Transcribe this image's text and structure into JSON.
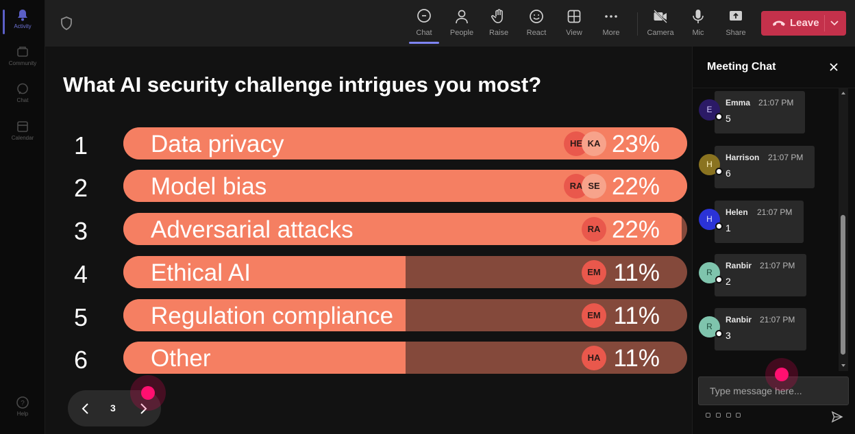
{
  "rail": [
    {
      "label": "Activity",
      "icon": "bell-icon",
      "active": true
    },
    {
      "label": "Community",
      "icon": "community-icon"
    },
    {
      "label": "Chat",
      "icon": "chat-icon"
    },
    {
      "label": "Calendar",
      "icon": "calendar-icon"
    },
    {
      "label": "Help",
      "icon": "help-icon"
    }
  ],
  "toolbar": {
    "chat": "Chat",
    "people": "People",
    "raise": "Raise",
    "react": "React",
    "view": "View",
    "more": "More",
    "camera": "Camera",
    "mic": "Mic",
    "share": "Share",
    "leave": "Leave"
  },
  "poll": {
    "question": "What AI security challenge intrigues you most?",
    "options": [
      {
        "rank": "1",
        "label": "Data privacy",
        "percent": "23%",
        "fill": 1.0,
        "voters": [
          "HE",
          "KA"
        ]
      },
      {
        "rank": "2",
        "label": "Model bias",
        "percent": "22%",
        "fill": 1.0,
        "voters": [
          "RA",
          "SE"
        ]
      },
      {
        "rank": "3",
        "label": "Adversarial attacks",
        "percent": "22%",
        "fill": 0.99,
        "voters": [
          "RA"
        ]
      },
      {
        "rank": "4",
        "label": "Ethical AI",
        "percent": "11%",
        "fill": 0.5,
        "voters": [
          "EM"
        ]
      },
      {
        "rank": "5",
        "label": "Regulation compliance",
        "percent": "11%",
        "fill": 0.5,
        "voters": [
          "EM"
        ]
      },
      {
        "rank": "6",
        "label": "Other",
        "percent": "11%",
        "fill": 0.5,
        "voters": [
          "HA"
        ]
      }
    ],
    "page": "3"
  },
  "chat": {
    "title": "Meeting Chat",
    "messages": [
      {
        "initial": "E",
        "name": "Emma",
        "time": "21:07 PM",
        "text": "5",
        "color": "#2b1a66",
        "initial_color": "#d6ccff"
      },
      {
        "initial": "H",
        "name": "Harrison",
        "time": "21:07 PM",
        "text": "6",
        "color": "#8a7320",
        "initial_color": "#fff2c0"
      },
      {
        "initial": "H",
        "name": "Helen",
        "time": "21:07 PM",
        "text": "1",
        "color": "#2b33d6",
        "initial_color": "#dfe1ff"
      },
      {
        "initial": "R",
        "name": "Ranbir",
        "time": "21:07 PM",
        "text": "2",
        "color": "#7fc4ad",
        "initial_color": "#1d4a3b"
      },
      {
        "initial": "R",
        "name": "Ranbir",
        "time": "21:07 PM",
        "text": "3",
        "color": "#7fc4ad",
        "initial_color": "#1d4a3b"
      }
    ],
    "placeholder": "Type message here..."
  }
}
